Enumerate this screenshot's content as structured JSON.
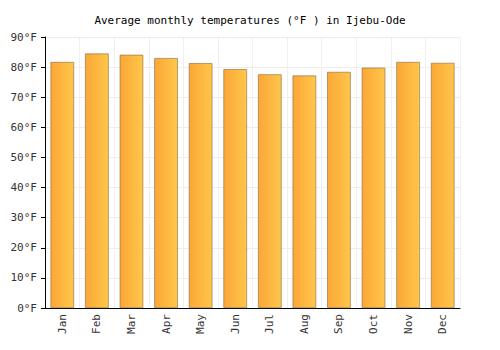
{
  "chart_data": {
    "type": "bar",
    "title": "Average monthly temperatures (°F ) in Ijebu-Ode",
    "categories": [
      "Jan",
      "Feb",
      "Mar",
      "Apr",
      "May",
      "Jun",
      "Jul",
      "Aug",
      "Sep",
      "Oct",
      "Nov",
      "Dec"
    ],
    "values": [
      81.7,
      84.5,
      84.1,
      83.0,
      81.3,
      79.3,
      77.6,
      77.2,
      78.4,
      79.8,
      81.7,
      81.4
    ],
    "color": "#fba737",
    "ylim": [
      0,
      90
    ],
    "yticks": [
      {
        "value": 0,
        "label": "0°F"
      },
      {
        "value": 10,
        "label": "10°F"
      },
      {
        "value": 20,
        "label": "20°F"
      },
      {
        "value": 30,
        "label": "30°F"
      },
      {
        "value": 40,
        "label": "40°F"
      },
      {
        "value": 50,
        "label": "50°F"
      },
      {
        "value": 60,
        "label": "60°F"
      },
      {
        "value": 70,
        "label": "70°F"
      },
      {
        "value": 80,
        "label": "80°F"
      },
      {
        "value": 90,
        "label": "90°F"
      }
    ],
    "grid": true
  }
}
